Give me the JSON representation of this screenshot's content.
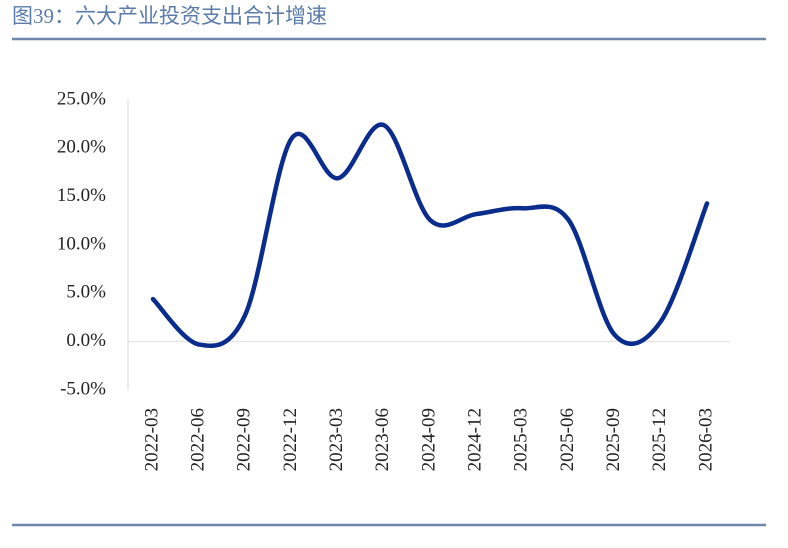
{
  "chart_data": {
    "type": "line",
    "title": "图39：六大产业投资支出合计增速",
    "categories": [
      "2022-03",
      "2022-06",
      "2022-09",
      "2022-12",
      "2023-03",
      "2023-06",
      "2024-09",
      "2024-12",
      "2025-03",
      "2025-06",
      "2025-09",
      "2025-12",
      "2026-03"
    ],
    "values": [
      4.4,
      -0.3,
      2.8,
      21.0,
      16.9,
      22.4,
      12.6,
      13.2,
      13.8,
      12.6,
      0.7,
      2.1,
      14.3
    ],
    "color": "#0a2c8c",
    "ylim": [
      -5,
      25
    ],
    "yticks": [
      {
        "value": -5,
        "label": "-5.0%"
      },
      {
        "value": 0,
        "label": "0.0%"
      },
      {
        "value": 5,
        "label": "5.0%"
      },
      {
        "value": 10,
        "label": "10.0%"
      },
      {
        "value": 15,
        "label": "15.0%"
      },
      {
        "value": 20,
        "label": "20.0%"
      },
      {
        "value": 25,
        "label": "25.0%"
      }
    ]
  }
}
